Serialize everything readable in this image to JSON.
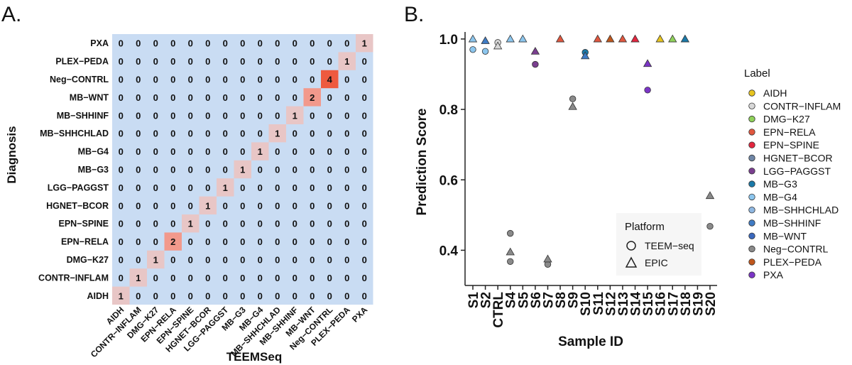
{
  "panels": {
    "a_label": "A.",
    "b_label": "B."
  },
  "chart_data": [
    {
      "type": "heatmap",
      "title": "",
      "xlabel": "TEEMSeq",
      "ylabel": "Diagnosis",
      "categories": [
        "AIDH",
        "CONTR-INFLAM",
        "DMG-K27",
        "EPN-RELA",
        "EPN-SPINE",
        "HGNET-BCOR",
        "LGG-PAGGST",
        "MB-G3",
        "MB-G4",
        "MB-SHHCHLAD",
        "MB-SHHINF",
        "MB-WNT",
        "Neg-CONTRL",
        "PLEX-PEDA",
        "PXA"
      ],
      "x_tick_labels": [
        "AIDH",
        "CONTR−INFLAM",
        "DMG−K27",
        "EPN−RELA",
        "EPN−SPINE",
        "HGNET−BCOR",
        "LGG−PAGGST",
        "MB−G3",
        "MB−G4",
        "MB−SHHCHLAD",
        "MB−SHHINF",
        "MB−WNT",
        "Neg−CONTRL",
        "PLEX−PEDA",
        "PXA"
      ],
      "y_tick_labels": [
        "AIDH",
        "CONTR−INFLAM",
        "DMG−K27",
        "EPN−RELA",
        "EPN−SPINE",
        "HGNET−BCOR",
        "LGG−PAGGST",
        "MB−G3",
        "MB−G4",
        "MB−SHHCHLAD",
        "MB−SHHINF",
        "MB−WNT",
        "Neg−CONTRL",
        "PLEX−PEDA",
        "PXA"
      ],
      "diagonal_counts": [
        1,
        1,
        1,
        2,
        1,
        1,
        1,
        1,
        1,
        1,
        1,
        2,
        4,
        1,
        1
      ],
      "off_diagonal_value": 0,
      "colors": {
        "zero": "#c9dcf3",
        "one": "#e8c6c6",
        "two": "#f2998c",
        "four": "#ee5a3f"
      }
    },
    {
      "type": "scatter",
      "title": "",
      "xlabel": "Sample ID",
      "ylabel": "Prediction Score",
      "categories": [
        "S1",
        "S2",
        "CTRL",
        "S4",
        "S5",
        "S6",
        "S7",
        "S8",
        "S9",
        "S10",
        "S11",
        "S12",
        "S13",
        "S14",
        "S15",
        "S16",
        "S17",
        "S18",
        "S19",
        "S20"
      ],
      "ylim": [
        0.3,
        1.02
      ],
      "y_ticks": [
        "0.4",
        "0.6",
        "0.8",
        "1.0"
      ],
      "y_tick_values": [
        0.4,
        0.6,
        0.8,
        1.0
      ],
      "series": [
        {
          "name": "TEEM-seq",
          "shape": "circle",
          "points": [
            {
              "x": "S1",
              "y": 0.97,
              "label": "MB-G4"
            },
            {
              "x": "S2",
              "y": 0.965,
              "label": "MB-G4"
            },
            {
              "x": "CTRL",
              "y": 0.99,
              "label": "CONTR-INFLAM"
            },
            {
              "x": "S4",
              "y": 0.368,
              "label": "Neg-CONTRL"
            },
            {
              "x": "S4",
              "y": 0.448,
              "label": "Neg-CONTRL"
            },
            {
              "x": "S6",
              "y": 0.928,
              "label": "LGG-PAGGST"
            },
            {
              "x": "S7",
              "y": 0.36,
              "label": "Neg-CONTRL"
            },
            {
              "x": "S9",
              "y": 0.83,
              "label": "Neg-CONTRL"
            },
            {
              "x": "S10",
              "y": 0.962,
              "label": "MB-G3"
            },
            {
              "x": "S15",
              "y": 0.855,
              "label": "PXA"
            },
            {
              "x": "S20",
              "y": 0.468,
              "label": "Neg-CONTRL"
            }
          ]
        },
        {
          "name": "EPIC",
          "shape": "triangle",
          "points": [
            {
              "x": "S1",
              "y": 1.0,
              "label": "MB-G4"
            },
            {
              "x": "S2",
              "y": 0.995,
              "label": "MB-SHHINF"
            },
            {
              "x": "CTRL",
              "y": 0.98,
              "label": "CONTR-INFLAM"
            },
            {
              "x": "S4",
              "y": 1.0,
              "label": "MB-G4"
            },
            {
              "x": "S4",
              "y": 0.395,
              "label": "Neg-CONTRL"
            },
            {
              "x": "S5",
              "y": 1.0,
              "label": "MB-G4"
            },
            {
              "x": "S6",
              "y": 0.965,
              "label": "LGG-PAGGST"
            },
            {
              "x": "S7",
              "y": 0.375,
              "label": "Neg-CONTRL"
            },
            {
              "x": "S8",
              "y": 1.0,
              "label": "EPN-RELA"
            },
            {
              "x": "S9",
              "y": 0.808,
              "label": "Neg-CONTRL"
            },
            {
              "x": "S10",
              "y": 0.952,
              "label": "MB-SHHINF"
            },
            {
              "x": "S11",
              "y": 1.0,
              "label": "EPN-RELA"
            },
            {
              "x": "S12",
              "y": 1.0,
              "label": "PLEX-PEDA"
            },
            {
              "x": "S13",
              "y": 1.0,
              "label": "EPN-RELA"
            },
            {
              "x": "S14",
              "y": 1.0,
              "label": "EPN-SPINE"
            },
            {
              "x": "S15",
              "y": 0.93,
              "label": "PXA"
            },
            {
              "x": "S16",
              "y": 1.0,
              "label": "AIDH"
            },
            {
              "x": "S17",
              "y": 1.0,
              "label": "DMG-K27"
            },
            {
              "x": "S18",
              "y": 1.0,
              "label": "MB-G3"
            },
            {
              "x": "S20",
              "y": 0.555,
              "label": "Neg-CONTRL"
            }
          ]
        }
      ],
      "legend_color_title": "Label",
      "legend_color": [
        {
          "name": "AIDH",
          "color": "#e7c41f"
        },
        {
          "name": "CONTR−INFLAM",
          "color": "#d8d8d8"
        },
        {
          "name": "DMG−K27",
          "color": "#8fd15a"
        },
        {
          "name": "EPN−RELA",
          "color": "#e0573f"
        },
        {
          "name": "EPN−SPINE",
          "color": "#e3263f"
        },
        {
          "name": "HGNET−BCOR",
          "color": "#6f86a6"
        },
        {
          "name": "LGG−PAGGST",
          "color": "#7a3f8f"
        },
        {
          "name": "MB−G3",
          "color": "#1a79a8"
        },
        {
          "name": "MB−G4",
          "color": "#8cc6ee"
        },
        {
          "name": "MB−SHHCHLAD",
          "color": "#8fb7e1"
        },
        {
          "name": "MB−SHHINF",
          "color": "#3f7bc4"
        },
        {
          "name": "MB−WNT",
          "color": "#3a68bd"
        },
        {
          "name": "Neg−CONTRL",
          "color": "#8a8a8a"
        },
        {
          "name": "PLEX−PEDA",
          "color": "#c0571d"
        },
        {
          "name": "PXA",
          "color": "#7b35c6"
        }
      ],
      "legend_shape_title": "Platform",
      "legend_shape": [
        {
          "name": "TEEM−seq",
          "shape": "circle"
        },
        {
          "name": "EPIC",
          "shape": "triangle"
        }
      ],
      "legend_placement": "right"
    }
  ]
}
